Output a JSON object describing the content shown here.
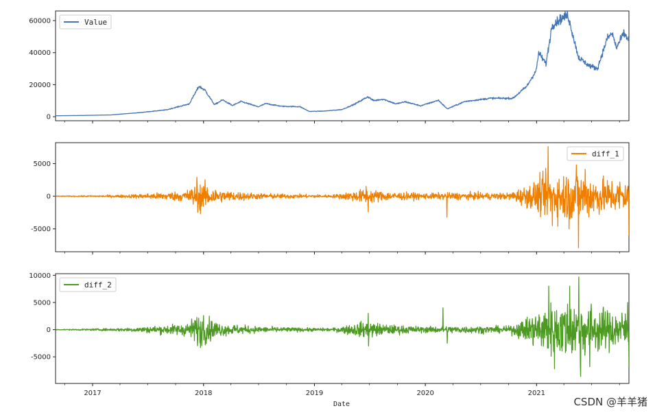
{
  "chart_data": [
    {
      "type": "line",
      "series": [
        {
          "name": "Value",
          "color": "#4575b4"
        }
      ],
      "ylim": [
        -2500,
        66000
      ],
      "yticks": [
        0,
        20000,
        40000,
        60000
      ],
      "ytick_labels": [
        "0",
        "20000",
        "40000",
        "60000"
      ],
      "legend": "top-left",
      "keypoints": [
        [
          "2016-09-01",
          600
        ],
        [
          "2016-12-01",
          800
        ],
        [
          "2017-03-01",
          1100
        ],
        [
          "2017-06-01",
          2500
        ],
        [
          "2017-09-01",
          4300
        ],
        [
          "2017-11-15",
          8000
        ],
        [
          "2017-12-17",
          19000
        ],
        [
          "2018-01-06",
          16500
        ],
        [
          "2018-02-06",
          7500
        ],
        [
          "2018-03-05",
          10500
        ],
        [
          "2018-04-06",
          7000
        ],
        [
          "2018-05-05",
          9500
        ],
        [
          "2018-06-30",
          6200
        ],
        [
          "2018-07-25",
          8200
        ],
        [
          "2018-09-15",
          6500
        ],
        [
          "2018-11-14",
          6300
        ],
        [
          "2018-12-15",
          3300
        ],
        [
          "2019-02-01",
          3500
        ],
        [
          "2019-04-02",
          4500
        ],
        [
          "2019-05-15",
          8000
        ],
        [
          "2019-06-26",
          12500
        ],
        [
          "2019-07-15",
          10000
        ],
        [
          "2019-08-15",
          11000
        ],
        [
          "2019-09-26",
          8000
        ],
        [
          "2019-10-27",
          9300
        ],
        [
          "2019-12-17",
          6800
        ],
        [
          "2020-02-13",
          10300
        ],
        [
          "2020-03-13",
          4900
        ],
        [
          "2020-05-10",
          9500
        ],
        [
          "2020-08-01",
          11500
        ],
        [
          "2020-10-15",
          11500
        ],
        [
          "2020-11-30",
          19000
        ],
        [
          "2020-12-31",
          29000
        ],
        [
          "2021-01-08",
          40000
        ],
        [
          "2021-02-01",
          33000
        ],
        [
          "2021-02-21",
          57000
        ],
        [
          "2021-03-13",
          60000
        ],
        [
          "2021-04-14",
          63500
        ],
        [
          "2021-05-19",
          37000
        ],
        [
          "2021-06-22",
          32000
        ],
        [
          "2021-07-20",
          30000
        ],
        [
          "2021-08-22",
          49000
        ],
        [
          "2021-09-07",
          52000
        ],
        [
          "2021-09-21",
          43000
        ],
        [
          "2021-10-15",
          52000
        ],
        [
          "2021-11-01",
          48000
        ]
      ]
    },
    {
      "type": "line",
      "series": [
        {
          "name": "diff_1",
          "color": "#f07f00"
        }
      ],
      "ylim": [
        -8500,
        8200
      ],
      "yticks": [
        -5000,
        0,
        5000
      ],
      "ytick_labels": [
        "-5000",
        "0",
        "5000"
      ],
      "legend": "top-right",
      "volatility": [
        [
          "2016-09-01",
          40
        ],
        [
          "2017-03-01",
          150
        ],
        [
          "2017-06-01",
          300
        ],
        [
          "2017-11-01",
          700
        ],
        [
          "2017-12-20",
          2000
        ],
        [
          "2018-03-01",
          800
        ],
        [
          "2018-07-01",
          400
        ],
        [
          "2018-12-01",
          250
        ],
        [
          "2019-03-01",
          200
        ],
        [
          "2019-06-20",
          1000
        ],
        [
          "2019-09-01",
          600
        ],
        [
          "2020-01-01",
          400
        ],
        [
          "2020-04-01",
          500
        ],
        [
          "2020-10-01",
          450
        ],
        [
          "2020-12-01",
          1500
        ],
        [
          "2021-02-01",
          3000
        ],
        [
          "2021-05-15",
          3500
        ],
        [
          "2021-08-01",
          2500
        ],
        [
          "2021-11-01",
          2200
        ]
      ],
      "spikes": [
        [
          "2017-12-10",
          2900
        ],
        [
          "2017-12-22",
          -2700
        ],
        [
          "2019-06-27",
          -2400
        ],
        [
          "2019-06-20",
          1500
        ],
        [
          "2020-03-12",
          -3200
        ],
        [
          "2021-02-08",
          7600
        ],
        [
          "2021-02-22",
          -4500
        ],
        [
          "2021-04-18",
          -5000
        ],
        [
          "2021-05-12",
          4800
        ],
        [
          "2021-05-19",
          -7900
        ],
        [
          "2021-06-10",
          4100
        ],
        [
          "2021-11-01",
          -6000
        ]
      ]
    },
    {
      "type": "line",
      "series": [
        {
          "name": "diff_2",
          "color": "#4d9a22"
        }
      ],
      "xlabel": "Date",
      "ylim": [
        -9900,
        10300
      ],
      "yticks": [
        -5000,
        0,
        5000,
        10000
      ],
      "ytick_labels": [
        "-5000",
        "0",
        "5000",
        "10000"
      ],
      "legend": "top-left",
      "xrange": [
        "2016-09-01",
        "2021-11-01"
      ],
      "xticks": [
        "2017-01-01",
        "2018-01-01",
        "2019-01-01",
        "2020-01-01",
        "2021-01-01"
      ],
      "xtick_labels": [
        "2017",
        "2018",
        "2019",
        "2020",
        "2021"
      ],
      "volatility": [
        [
          "2016-09-01",
          50
        ],
        [
          "2017-03-01",
          200
        ],
        [
          "2017-06-01",
          400
        ],
        [
          "2017-11-01",
          1000
        ],
        [
          "2017-12-20",
          2600
        ],
        [
          "2018-03-01",
          1000
        ],
        [
          "2018-07-01",
          500
        ],
        [
          "2018-12-01",
          300
        ],
        [
          "2019-03-01",
          250
        ],
        [
          "2019-06-20",
          1400
        ],
        [
          "2019-09-01",
          800
        ],
        [
          "2020-01-01",
          500
        ],
        [
          "2020-04-01",
          600
        ],
        [
          "2020-10-01",
          550
        ],
        [
          "2020-12-01",
          2000
        ],
        [
          "2021-02-01",
          4200
        ],
        [
          "2021-05-15",
          5000
        ],
        [
          "2021-08-01",
          3500
        ],
        [
          "2021-11-01",
          3000
        ]
      ],
      "spikes": [
        [
          "2018-01-01",
          2600
        ],
        [
          "2017-12-22",
          -3300
        ],
        [
          "2019-06-27",
          3000
        ],
        [
          "2019-06-28",
          -3000
        ],
        [
          "2020-02-28",
          4000
        ],
        [
          "2020-03-13",
          -2500
        ],
        [
          "2021-02-10",
          8000
        ],
        [
          "2021-03-01",
          -7200
        ],
        [
          "2021-05-20",
          9700
        ],
        [
          "2021-05-26",
          -8600
        ],
        [
          "2021-04-20",
          8000
        ],
        [
          "2021-06-25",
          -6800
        ],
        [
          "2021-11-01",
          -6800
        ],
        [
          "2021-10-28",
          5000
        ]
      ]
    }
  ],
  "watermark": {
    "text": "CSDN @羊羊猪"
  }
}
